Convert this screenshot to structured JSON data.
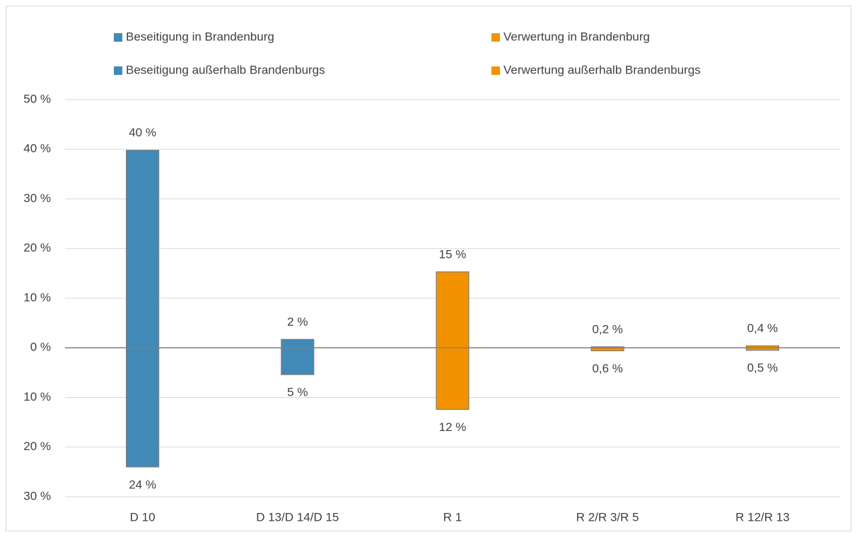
{
  "chart_data": {
    "type": "bar",
    "categories": [
      "D 10",
      "D 13/D 14/D 15",
      "R 1",
      "R 2/R 3/R 5",
      "R 12/R 13"
    ],
    "series": [
      {
        "name": "Beseitigung in Brandenburg",
        "color": "#4189b6",
        "values": [
          39.8,
          1.7,
          null,
          null,
          null
        ],
        "value_labels": [
          "40 %",
          "2 %",
          null,
          null,
          null
        ]
      },
      {
        "name": "Beseitigung außerhalb Brandenburgs",
        "color": "#4189b6",
        "values": [
          -24,
          -5.4,
          null,
          null,
          null
        ],
        "value_labels": [
          "24 %",
          "5 %",
          null,
          null,
          null
        ]
      },
      {
        "name": "Verwertung in Brandenburg",
        "color": "#f39200",
        "values": [
          null,
          null,
          15.3,
          0.2,
          0.4
        ],
        "value_labels": [
          null,
          null,
          "15 %",
          "0,2 %",
          "0,4 %"
        ]
      },
      {
        "name": "Verwertung außerhalb Brandenburgs",
        "color": "#f39200",
        "values": [
          null,
          null,
          -12.4,
          -0.6,
          -0.5
        ],
        "value_labels": [
          null,
          null,
          "12 %",
          "0,6 %",
          "0,5 %"
        ]
      }
    ],
    "ylim": [
      -30,
      50
    ],
    "yticks": [
      {
        "value": -30,
        "label": "30 %"
      },
      {
        "value": -20,
        "label": "20 %"
      },
      {
        "value": -10,
        "label": "10 %"
      },
      {
        "value": 0,
        "label": "0 %"
      },
      {
        "value": 10,
        "label": "10 %"
      },
      {
        "value": 20,
        "label": "20 %"
      },
      {
        "value": 30,
        "label": "30 %"
      },
      {
        "value": 40,
        "label": "40 %"
      },
      {
        "value": 50,
        "label": "50 %"
      }
    ],
    "grid": true
  }
}
